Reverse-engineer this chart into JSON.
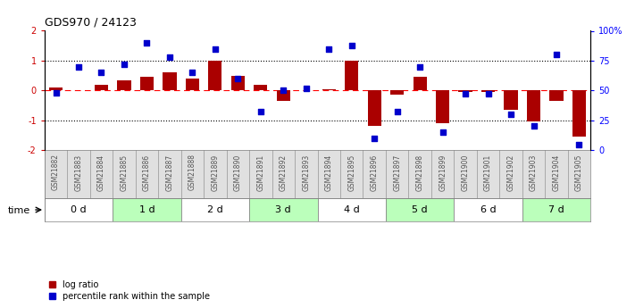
{
  "title": "GDS970 / 24123",
  "samples": [
    "GSM21882",
    "GSM21883",
    "GSM21884",
    "GSM21885",
    "GSM21886",
    "GSM21887",
    "GSM21888",
    "GSM21889",
    "GSM21890",
    "GSM21891",
    "GSM21892",
    "GSM21893",
    "GSM21894",
    "GSM21895",
    "GSM21896",
    "GSM21897",
    "GSM21898",
    "GSM21899",
    "GSM21900",
    "GSM21901",
    "GSM21902",
    "GSM21903",
    "GSM21904",
    "GSM21905"
  ],
  "log_ratio": [
    0.1,
    0.0,
    0.2,
    0.35,
    0.45,
    0.6,
    0.4,
    1.0,
    0.5,
    0.2,
    -0.35,
    0.0,
    0.05,
    1.0,
    -1.2,
    -0.15,
    0.45,
    -1.1,
    -0.05,
    -0.05,
    -0.65,
    -1.05,
    -0.35,
    -1.55
  ],
  "percentile": [
    48,
    70,
    65,
    72,
    90,
    78,
    65,
    85,
    60,
    32,
    50,
    52,
    85,
    88,
    10,
    32,
    70,
    15,
    47,
    47,
    30,
    20,
    80,
    5
  ],
  "time_groups": [
    {
      "label": "0 d",
      "start": 0,
      "end": 3,
      "color": "#ffffff"
    },
    {
      "label": "1 d",
      "start": 3,
      "end": 6,
      "color": "#bbffbb"
    },
    {
      "label": "2 d",
      "start": 6,
      "end": 9,
      "color": "#ffffff"
    },
    {
      "label": "3 d",
      "start": 9,
      "end": 12,
      "color": "#bbffbb"
    },
    {
      "label": "4 d",
      "start": 12,
      "end": 15,
      "color": "#ffffff"
    },
    {
      "label": "5 d",
      "start": 15,
      "end": 18,
      "color": "#bbffbb"
    },
    {
      "label": "6 d",
      "start": 18,
      "end": 21,
      "color": "#ffffff"
    },
    {
      "label": "7 d",
      "start": 21,
      "end": 24,
      "color": "#bbffbb"
    }
  ],
  "bar_color": "#aa0000",
  "scatter_color": "#0000cc",
  "ylim_left": [
    -2,
    2
  ],
  "ylim_right": [
    0,
    100
  ],
  "yticks_left": [
    -2,
    -1,
    0,
    1,
    2
  ],
  "yticks_right": [
    0,
    25,
    50,
    75,
    100
  ],
  "ytick_labels_right": [
    "0",
    "25",
    "50",
    "75",
    "100%"
  ],
  "legend_items": [
    {
      "label": "log ratio",
      "color": "#aa0000"
    },
    {
      "label": "percentile rank within the sample",
      "color": "#0000cc"
    }
  ],
  "sample_label_color": "#555555",
  "figsize": [
    7.11,
    3.45
  ],
  "dpi": 100
}
